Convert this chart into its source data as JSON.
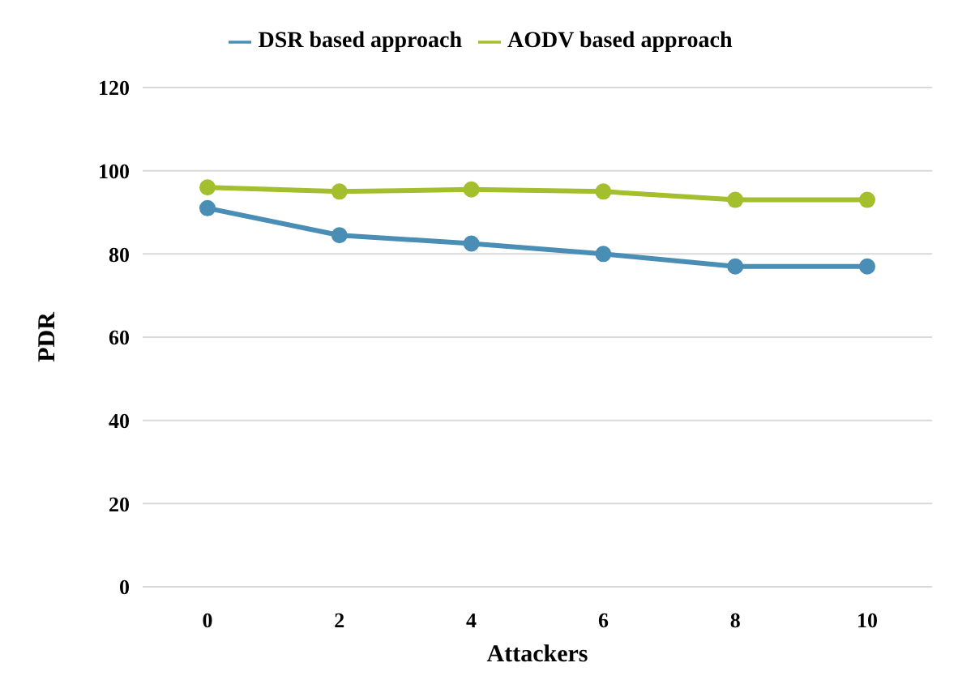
{
  "chart_data": {
    "type": "line",
    "xlabel": "Attackers",
    "ylabel": "PDR",
    "categories": [
      "0",
      "2",
      "4",
      "6",
      "8",
      "10"
    ],
    "series": [
      {
        "name": "DSR based approach",
        "color": "#4a8db5",
        "values": [
          91,
          84.5,
          82.5,
          80,
          77,
          77
        ]
      },
      {
        "name": "AODV based approach",
        "color": "#a3bf2e",
        "values": [
          96,
          95,
          95.5,
          95,
          93,
          93
        ]
      }
    ],
    "ylim": [
      0,
      120
    ],
    "yticks": [
      0,
      20,
      40,
      60,
      80,
      100,
      120
    ],
    "grid": "y",
    "legend": "top",
    "marker": "circle",
    "line_style": "solid"
  }
}
